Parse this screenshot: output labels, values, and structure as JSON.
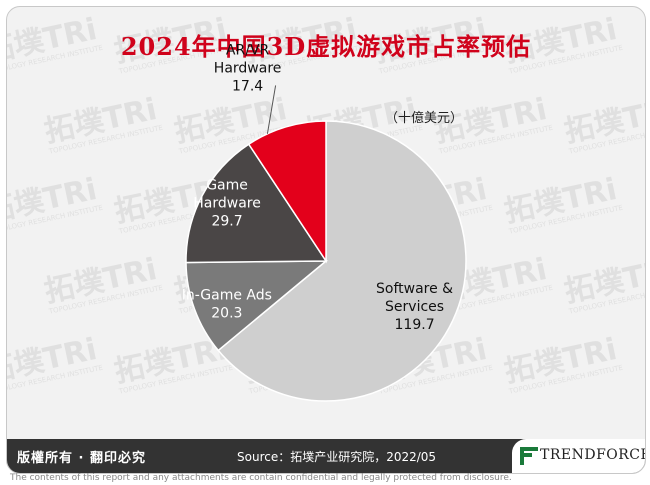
{
  "title": "2024年中国3D虚拟游戏市占率预估",
  "unit_label": "（十億美元）",
  "footer": {
    "rights": "版權所有 · 翻印必究",
    "source": "Source：拓墣产业研究院，2022/05",
    "brand": "TRENDFORCE"
  },
  "disclaimer": "The contents of this report and any attachments are contain confidential and legally protected from disclosure.",
  "watermark": {
    "text": "拓墣TRi",
    "subtext": "TOPOLOGY RESEARCH INSTITUTE"
  },
  "colors": {
    "title": "#d0021b",
    "software": "#cfcfcf",
    "ingame": "#7a7a7a",
    "hardware": "#4a4646",
    "arvr": "#e3001b"
  },
  "chart_data": {
    "type": "pie",
    "start_angle_deg": 0,
    "direction": "clockwise",
    "slices": [
      {
        "label": "Software & Services",
        "value": 119.7,
        "color": "#cfcfcf",
        "label_lines": [
          "Software &",
          "Services"
        ],
        "value_text": "119.7",
        "label_color": "#111111"
      },
      {
        "label": "In-Game Ads",
        "value": 20.3,
        "color": "#7a7a7a",
        "label_lines": [
          "In-Game Ads"
        ],
        "value_text": "20.3",
        "label_color": "#ffffff"
      },
      {
        "label": "Game Hardware",
        "value": 29.7,
        "color": "#4a4646",
        "label_lines": [
          "Game",
          "Hardware"
        ],
        "value_text": "29.7",
        "label_color": "#ffffff"
      },
      {
        "label": "AR/VR Hardware",
        "value": 17.4,
        "color": "#e3001b",
        "label_lines": [
          "AR/VR",
          "Hardware"
        ],
        "value_text": "17.4",
        "label_color": "#111111"
      }
    ]
  }
}
